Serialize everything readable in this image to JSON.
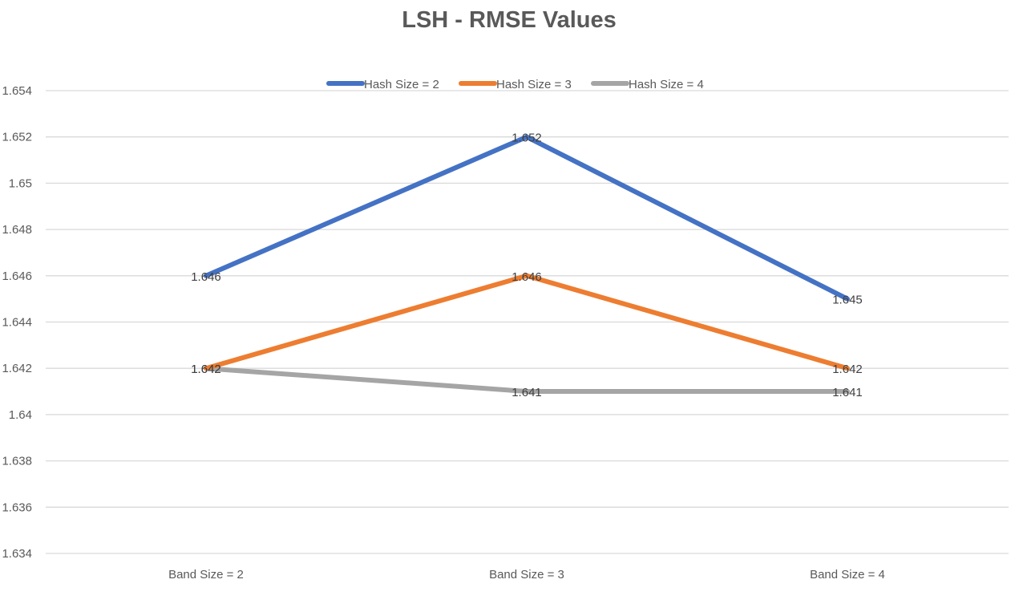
{
  "chart_data": {
    "type": "line",
    "title": "LSH - RMSE Values",
    "xlabel": "",
    "ylabel": "",
    "categories": [
      "Band Size = 2",
      "Band Size = 3",
      "Band Size = 4"
    ],
    "ylim": [
      1.634,
      1.654
    ],
    "yticks": [
      1.634,
      1.636,
      1.638,
      1.64,
      1.642,
      1.644,
      1.646,
      1.648,
      1.65,
      1.652,
      1.654
    ],
    "ytick_labels": [
      "1.634",
      "1.636",
      "1.638",
      "1.64",
      "1.642",
      "1.644",
      "1.646",
      "1.648",
      "1.65",
      "1.652",
      "1.654"
    ],
    "grid": true,
    "legend_position": "top",
    "series": [
      {
        "name": "Hash Size = 2",
        "color": "#4472c4",
        "values": [
          1.646,
          1.652,
          1.645
        ],
        "data_labels": [
          "1.646",
          "1.652",
          "1.645"
        ]
      },
      {
        "name": "Hash Size = 3",
        "color": "#ed7d31",
        "values": [
          1.642,
          1.646,
          1.642
        ],
        "data_labels": [
          "1.642",
          "1.646",
          "1.642"
        ]
      },
      {
        "name": "Hash Size = 4",
        "color": "#a5a5a5",
        "values": [
          1.642,
          1.641,
          1.641
        ],
        "data_labels": [
          "1.642",
          "1.641",
          "1.641"
        ]
      }
    ]
  }
}
